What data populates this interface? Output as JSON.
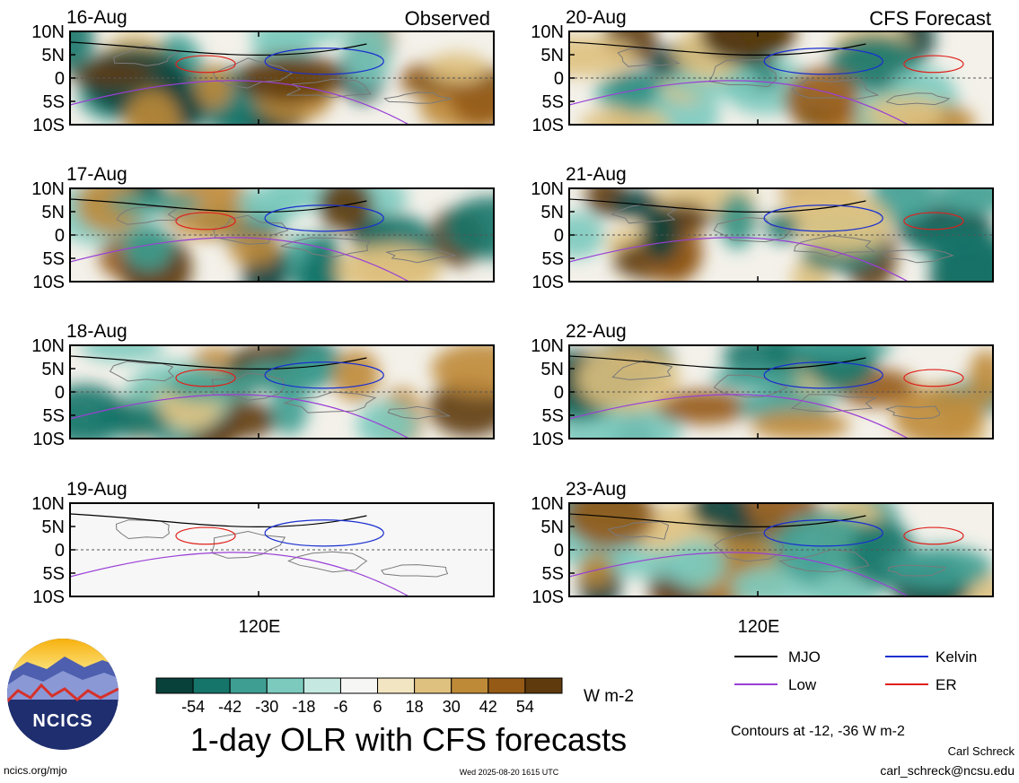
{
  "chart_data": {
    "type": "heatmap",
    "title": "1-day OLR with CFS forecasts",
    "units": "W m-2",
    "x_tick_label": "120E",
    "y_tick_labels": [
      "10N",
      "5N",
      "0",
      "5S",
      "10S"
    ],
    "observed_label": "Observed",
    "forecast_label": "CFS Forecast",
    "panels": [
      {
        "date": "16-Aug",
        "kind": "observed"
      },
      {
        "date": "17-Aug",
        "kind": "observed"
      },
      {
        "date": "18-Aug",
        "kind": "observed"
      },
      {
        "date": "19-Aug",
        "kind": "observed"
      },
      {
        "date": "20-Aug",
        "kind": "forecast"
      },
      {
        "date": "21-Aug",
        "kind": "forecast"
      },
      {
        "date": "22-Aug",
        "kind": "forecast"
      },
      {
        "date": "23-Aug",
        "kind": "forecast"
      }
    ],
    "colorbar": {
      "labels": [
        "-54",
        "-42",
        "-30",
        "-18",
        "-6",
        "6",
        "18",
        "30",
        "42",
        "54"
      ],
      "colors": [
        "#08403a",
        "#16756a",
        "#3e9e92",
        "#7ccabe",
        "#c5e9e1",
        "#f6f6f4",
        "#f2e5c2",
        "#dfc17f",
        "#bf8a38",
        "#955a16",
        "#5e3a0d"
      ]
    },
    "legend": [
      {
        "label": "MJO",
        "color": "#000000"
      },
      {
        "label": "Kelvin",
        "color": "#1a2fd0"
      },
      {
        "label": "Low",
        "color": "#9a3fd6"
      },
      {
        "label": "ER",
        "color": "#e0201b"
      }
    ],
    "contour_note": "Contours at -12, -36 W m-2"
  },
  "footer": {
    "logo_text": "NCICS",
    "website": "ncics.org/mjo",
    "timestamp": "Wed 2025-08-20 1615 UTC",
    "author": "Carl Schreck",
    "email": "carl_schreck@ncsu.edu"
  }
}
